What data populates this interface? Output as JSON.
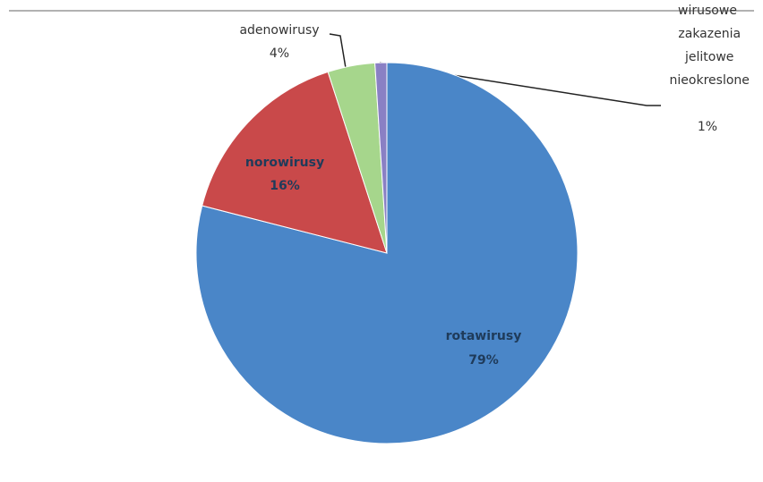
{
  "chart_data": {
    "type": "pie",
    "categories": [
      "rotawirusy",
      "norowirusy",
      "adenowirusy",
      "wirusowe zakazenia jelitowe nieokreslone"
    ],
    "values": [
      79,
      16,
      4,
      1
    ],
    "value_labels": [
      "79%",
      "16%",
      "4%",
      "1%"
    ],
    "colors": [
      "#4a86c8",
      "#c9494a",
      "#a6d68c",
      "#8a80c4"
    ]
  }
}
